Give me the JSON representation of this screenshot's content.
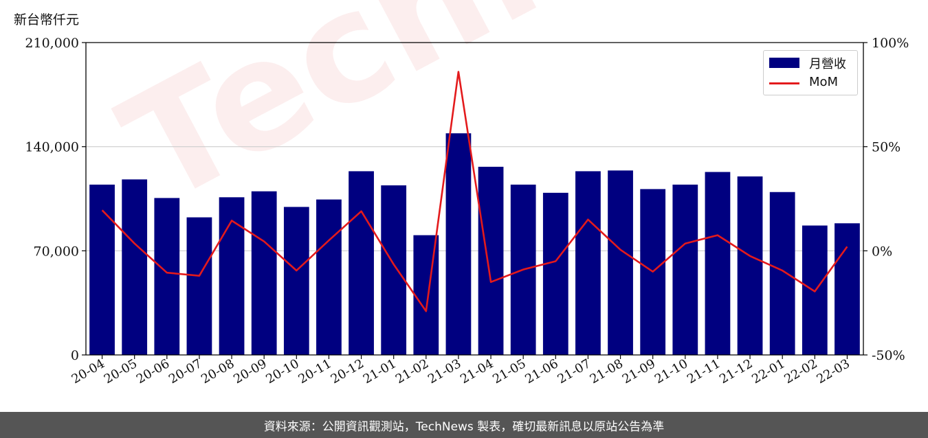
{
  "unit_label": "新台幣仟元",
  "footer_text": "資料來源：公開資訊觀測站，TechNews 製表，確切最新訊息以原站公告為準",
  "watermark_text": "TechNews",
  "colors": {
    "bar": "#000080",
    "line": "#e31a1c",
    "grid": "#cccccc",
    "footer_bg": "#555555"
  },
  "chart_data": {
    "type": "bar",
    "categories": [
      "20-04",
      "20-05",
      "20-06",
      "20-07",
      "20-08",
      "20-09",
      "20-10",
      "20-11",
      "20-12",
      "21-01",
      "21-02",
      "21-03",
      "21-04",
      "21-05",
      "21-06",
      "21-07",
      "21-08",
      "21-09",
      "21-10",
      "21-11",
      "21-12",
      "22-01",
      "22-02",
      "22-03"
    ],
    "series": [
      {
        "name": "月營收",
        "type": "bar",
        "axis": "left",
        "values": [
          114500,
          118000,
          105500,
          92500,
          106000,
          110000,
          99500,
          104500,
          123500,
          114000,
          80500,
          149000,
          126500,
          114500,
          109000,
          123500,
          124000,
          111500,
          114500,
          123000,
          120000,
          109500,
          87000,
          88500
        ]
      },
      {
        "name": "MoM",
        "type": "line",
        "axis": "right",
        "values": [
          19.5,
          3.5,
          -10.5,
          -12,
          14.5,
          4.5,
          -9.5,
          5,
          19,
          -6.5,
          -29,
          86,
          -15,
          -9,
          -5,
          15,
          0.5,
          -10,
          3.5,
          7.5,
          -2.5,
          -9.5,
          -19.5,
          2
        ]
      }
    ],
    "yaxis_left": {
      "ticks": [
        0,
        70000,
        140000,
        210000
      ],
      "tick_labels": [
        "0",
        "70,000",
        "140,000",
        "210,000"
      ],
      "ylim": [
        0,
        210000
      ]
    },
    "yaxis_right": {
      "ticks": [
        -50,
        0,
        50,
        100
      ],
      "tick_labels": [
        "-50%",
        "0%",
        "50%",
        "100%"
      ],
      "ylim": [
        -50,
        100
      ]
    },
    "grid": "horizontal",
    "legend": "top-right"
  }
}
